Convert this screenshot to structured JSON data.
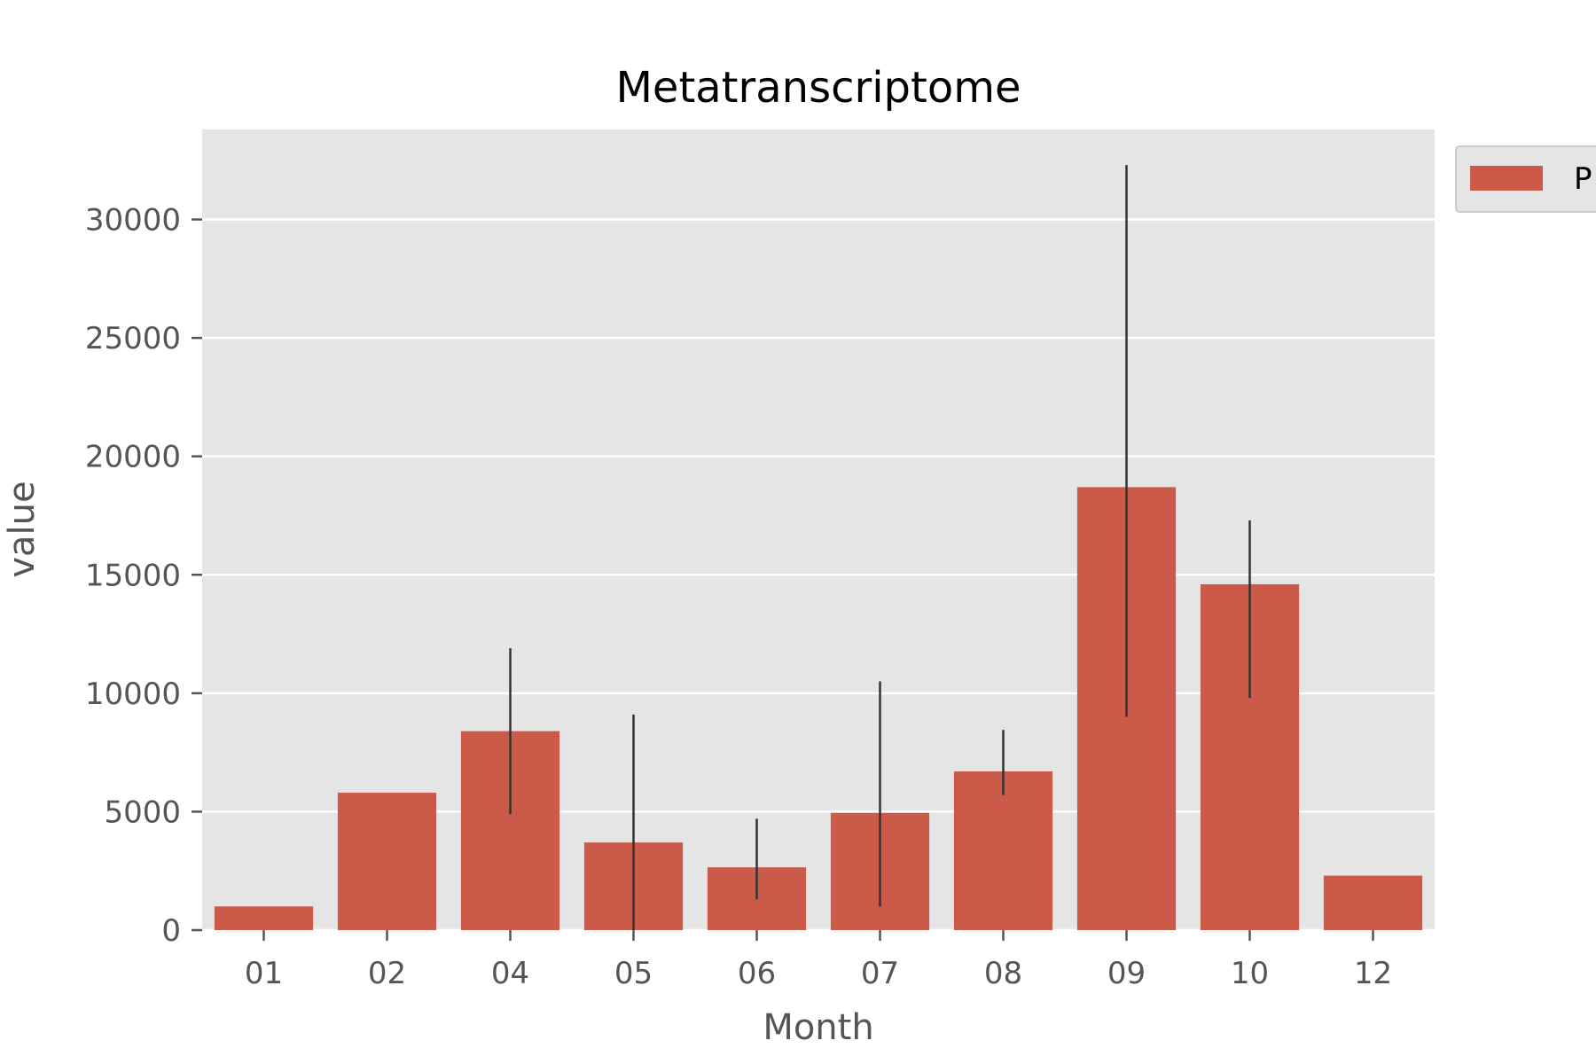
{
  "chart_data": {
    "type": "bar",
    "title": "Metatranscriptome",
    "xlabel": "Month",
    "ylabel": "value",
    "categories": [
      "01",
      "02",
      "04",
      "05",
      "06",
      "07",
      "08",
      "09",
      "10",
      "12"
    ],
    "series": [
      {
        "name": "P",
        "values": [
          1000,
          5800,
          8400,
          3700,
          2650,
          4950,
          6700,
          18700,
          14600,
          2300
        ],
        "error_low": [
          null,
          null,
          4900,
          0,
          1300,
          1000,
          5700,
          9000,
          9800,
          null
        ],
        "error_high": [
          null,
          null,
          11900,
          9100,
          4700,
          10500,
          8450,
          32300,
          17300,
          null
        ]
      }
    ],
    "ylim": [
      0,
      33800
    ],
    "yticks": [
      0,
      5000,
      10000,
      15000,
      20000,
      25000,
      30000
    ],
    "grid": true,
    "legend_position": "outside-top-right",
    "colors": {
      "bar": "#cc5a49",
      "plot_background": "#e5e5e5",
      "grid": "#ffffff",
      "error_bar": "#333333",
      "legend_background": "#e5e5e5",
      "legend_border": "#cccccc",
      "tick_mark": "#555555"
    }
  }
}
